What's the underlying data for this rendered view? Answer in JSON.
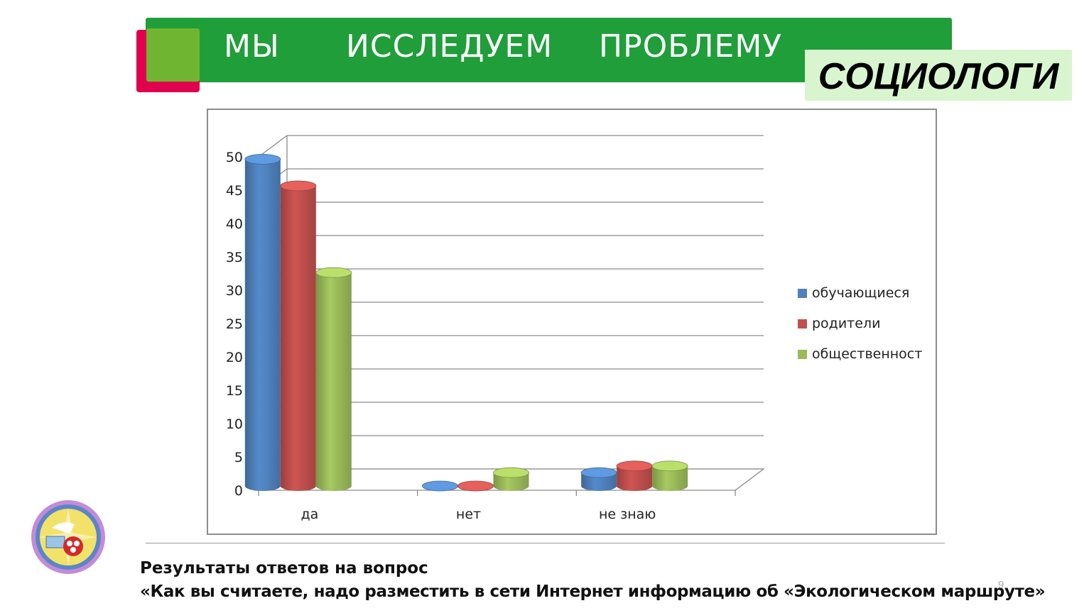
{
  "header": {
    "words": [
      "МЫ",
      "ИССЛЕДУЕМ",
      "ПРОБЛЕМУ"
    ],
    "tag": "СОЦИОЛОГИ"
  },
  "caption": {
    "line1": "Результаты ответов на вопрос",
    "line2": "«Как вы считаете, надо разместить в сети Интернет информацию об «Экологическом маршруте»"
  },
  "page_number": "9",
  "chart_data": {
    "type": "bar",
    "categories": [
      "да",
      "нет",
      "не знаю"
    ],
    "series": [
      {
        "name": "обучающиеся",
        "values": [
          49,
          0,
          2
        ],
        "color": "#4f81bd"
      },
      {
        "name": "родители",
        "values": [
          45,
          0,
          3
        ],
        "color": "#c0504d"
      },
      {
        "name": "общественност",
        "values": [
          32,
          2,
          3
        ],
        "color": "#9bbb59"
      }
    ],
    "ylim": [
      0,
      50
    ],
    "yticks": [
      "0",
      "5",
      "10",
      "15",
      "20",
      "25",
      "30",
      "35",
      "40",
      "45",
      "50"
    ],
    "grid": true,
    "legend": "right"
  },
  "logo_icon": "school-emblem-icon"
}
